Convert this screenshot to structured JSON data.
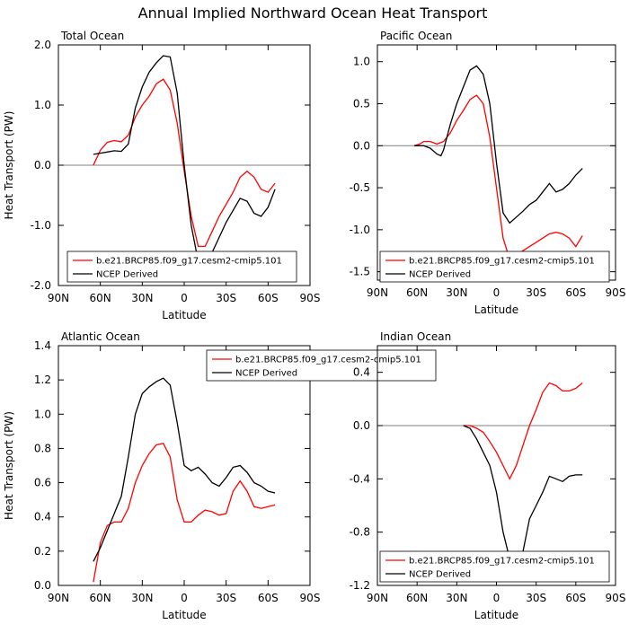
{
  "page": {
    "title": "Annual Implied Northward Ocean Heat Transport"
  },
  "colors": {
    "model": "#ff0000",
    "obs": "#000000",
    "zero_line": "#808080"
  },
  "chart_data": [
    {
      "type": "line",
      "title": "Total Ocean",
      "xlabel": "Latitude",
      "ylabel": "Heat Transport (PW)",
      "xlim": [
        90,
        -90
      ],
      "x_ticks": [
        90,
        60,
        30,
        0,
        -30,
        -60,
        -90
      ],
      "x_tick_labels": [
        "90N",
        "60N",
        "30N",
        "0",
        "30S",
        "60S",
        "90S"
      ],
      "ylim": [
        -2.0,
        2.0
      ],
      "y_ticks": [
        -2.0,
        -1.0,
        0.0,
        1.0,
        2.0
      ],
      "y_tick_labels": [
        "-2.0",
        "-1.0",
        "0.0",
        "1.0",
        "2.0"
      ],
      "zero_line": true,
      "legend_position": "bottom",
      "series": [
        {
          "name": "b.e21.BRCP85.f09_g17.cesm2-cmip5.101",
          "color": "#ff0000",
          "points": [
            [
              65,
              0.0
            ],
            [
              60,
              0.25
            ],
            [
              55,
              0.38
            ],
            [
              50,
              0.41
            ],
            [
              45,
              0.39
            ],
            [
              40,
              0.5
            ],
            [
              35,
              0.8
            ],
            [
              30,
              1.0
            ],
            [
              25,
              1.15
            ],
            [
              20,
              1.35
            ],
            [
              15,
              1.43
            ],
            [
              10,
              1.25
            ],
            [
              5,
              0.7
            ],
            [
              0,
              -0.1
            ],
            [
              -5,
              -0.85
            ],
            [
              -10,
              -1.35
            ],
            [
              -15,
              -1.35
            ],
            [
              -20,
              -1.1
            ],
            [
              -25,
              -0.85
            ],
            [
              -30,
              -0.65
            ],
            [
              -35,
              -0.45
            ],
            [
              -40,
              -0.2
            ],
            [
              -45,
              -0.1
            ],
            [
              -50,
              -0.2
            ],
            [
              -55,
              -0.4
            ],
            [
              -60,
              -0.45
            ],
            [
              -65,
              -0.3
            ]
          ]
        },
        {
          "name": "NCEP Derived",
          "color": "#000000",
          "points": [
            [
              65,
              0.18
            ],
            [
              60,
              0.2
            ],
            [
              55,
              0.22
            ],
            [
              50,
              0.24
            ],
            [
              45,
              0.23
            ],
            [
              40,
              0.35
            ],
            [
              35,
              0.95
            ],
            [
              30,
              1.3
            ],
            [
              25,
              1.55
            ],
            [
              20,
              1.7
            ],
            [
              15,
              1.82
            ],
            [
              10,
              1.8
            ],
            [
              5,
              1.2
            ],
            [
              0,
              0.0
            ],
            [
              -5,
              -1.0
            ],
            [
              -10,
              -1.6
            ],
            [
              -15,
              -1.65
            ],
            [
              -20,
              -1.45
            ],
            [
              -25,
              -1.2
            ],
            [
              -30,
              -0.95
            ],
            [
              -35,
              -0.75
            ],
            [
              -40,
              -0.55
            ],
            [
              -45,
              -0.6
            ],
            [
              -50,
              -0.8
            ],
            [
              -55,
              -0.85
            ],
            [
              -60,
              -0.7
            ],
            [
              -65,
              -0.4
            ]
          ]
        }
      ]
    },
    {
      "type": "line",
      "title": "Pacific Ocean",
      "xlabel": "Latitude",
      "ylabel": "",
      "xlim": [
        90,
        -90
      ],
      "x_ticks": [
        90,
        60,
        30,
        0,
        -30,
        -60,
        -90
      ],
      "x_tick_labels": [
        "90N",
        "60N",
        "30N",
        "0",
        "30S",
        "60S",
        "90S"
      ],
      "ylim": [
        -1.6,
        1.2
      ],
      "y_ticks": [
        -1.5,
        -1.0,
        -0.5,
        0.0,
        0.5,
        1.0
      ],
      "y_tick_labels": [
        "-1.5",
        "-1.0",
        "-0.5",
        "0.0",
        "0.5",
        "1.0"
      ],
      "zero_line": true,
      "legend_position": "bottom",
      "series": [
        {
          "name": "b.e21.BRCP85.f09_g17.cesm2-cmip5.101",
          "color": "#ff0000",
          "points": [
            [
              62,
              0.0
            ],
            [
              58,
              0.02
            ],
            [
              55,
              0.05
            ],
            [
              50,
              0.05
            ],
            [
              45,
              0.02
            ],
            [
              40,
              0.05
            ],
            [
              35,
              0.15
            ],
            [
              30,
              0.3
            ],
            [
              25,
              0.42
            ],
            [
              20,
              0.55
            ],
            [
              15,
              0.6
            ],
            [
              10,
              0.5
            ],
            [
              5,
              0.1
            ],
            [
              0,
              -0.5
            ],
            [
              -5,
              -1.1
            ],
            [
              -10,
              -1.35
            ],
            [
              -15,
              -1.3
            ],
            [
              -20,
              -1.25
            ],
            [
              -25,
              -1.2
            ],
            [
              -30,
              -1.15
            ],
            [
              -35,
              -1.1
            ],
            [
              -40,
              -1.05
            ],
            [
              -45,
              -1.03
            ],
            [
              -50,
              -1.05
            ],
            [
              -55,
              -1.1
            ],
            [
              -60,
              -1.2
            ],
            [
              -65,
              -1.07
            ]
          ]
        },
        {
          "name": "NCEP Derived",
          "color": "#000000",
          "points": [
            [
              62,
              0.0
            ],
            [
              58,
              0.0
            ],
            [
              55,
              0.0
            ],
            [
              50,
              -0.03
            ],
            [
              45,
              -0.1
            ],
            [
              42,
              -0.12
            ],
            [
              40,
              -0.05
            ],
            [
              35,
              0.25
            ],
            [
              30,
              0.5
            ],
            [
              25,
              0.7
            ],
            [
              20,
              0.9
            ],
            [
              15,
              0.95
            ],
            [
              10,
              0.85
            ],
            [
              5,
              0.5
            ],
            [
              0,
              -0.2
            ],
            [
              -5,
              -0.8
            ],
            [
              -10,
              -0.92
            ],
            [
              -15,
              -0.85
            ],
            [
              -20,
              -0.78
            ],
            [
              -25,
              -0.7
            ],
            [
              -30,
              -0.65
            ],
            [
              -35,
              -0.55
            ],
            [
              -40,
              -0.45
            ],
            [
              -45,
              -0.55
            ],
            [
              -50,
              -0.52
            ],
            [
              -55,
              -0.45
            ],
            [
              -60,
              -0.35
            ],
            [
              -65,
              -0.27
            ]
          ]
        }
      ]
    },
    {
      "type": "line",
      "title": "Atlantic Ocean",
      "xlabel": "Latitude",
      "ylabel": "Heat Transport (PW)",
      "xlim": [
        90,
        -90
      ],
      "x_ticks": [
        90,
        60,
        30,
        0,
        -30,
        -60,
        -90
      ],
      "x_tick_labels": [
        "90N",
        "60N",
        "30N",
        "0",
        "30S",
        "60S",
        "90S"
      ],
      "ylim": [
        0.0,
        1.4
      ],
      "y_ticks": [
        0.0,
        0.2,
        0.4,
        0.6,
        0.8,
        1.0,
        1.2,
        1.4
      ],
      "y_tick_labels": [
        "0.0",
        "0.2",
        "0.4",
        "0.6",
        "0.8",
        "1.0",
        "1.2",
        "1.4"
      ],
      "zero_line": false,
      "legend_position": "top",
      "series": [
        {
          "name": "b.e21.BRCP85.f09_g17.cesm2-cmip5.101",
          "color": "#ff0000",
          "points": [
            [
              65,
              0.02
            ],
            [
              60,
              0.25
            ],
            [
              55,
              0.35
            ],
            [
              50,
              0.37
            ],
            [
              45,
              0.37
            ],
            [
              40,
              0.45
            ],
            [
              35,
              0.6
            ],
            [
              30,
              0.7
            ],
            [
              25,
              0.77
            ],
            [
              20,
              0.82
            ],
            [
              15,
              0.83
            ],
            [
              10,
              0.75
            ],
            [
              5,
              0.5
            ],
            [
              0,
              0.37
            ],
            [
              -5,
              0.37
            ],
            [
              -10,
              0.41
            ],
            [
              -15,
              0.44
            ],
            [
              -20,
              0.43
            ],
            [
              -25,
              0.41
            ],
            [
              -30,
              0.42
            ],
            [
              -35,
              0.55
            ],
            [
              -40,
              0.61
            ],
            [
              -45,
              0.55
            ],
            [
              -50,
              0.46
            ],
            [
              -55,
              0.45
            ],
            [
              -60,
              0.46
            ],
            [
              -65,
              0.47
            ]
          ]
        },
        {
          "name": "NCEP Derived",
          "color": "#000000",
          "points": [
            [
              65,
              0.14
            ],
            [
              60,
              0.22
            ],
            [
              55,
              0.32
            ],
            [
              50,
              0.42
            ],
            [
              45,
              0.52
            ],
            [
              40,
              0.75
            ],
            [
              35,
              1.0
            ],
            [
              30,
              1.12
            ],
            [
              25,
              1.16
            ],
            [
              20,
              1.19
            ],
            [
              15,
              1.21
            ],
            [
              10,
              1.17
            ],
            [
              5,
              0.95
            ],
            [
              0,
              0.7
            ],
            [
              -5,
              0.67
            ],
            [
              -10,
              0.69
            ],
            [
              -15,
              0.65
            ],
            [
              -20,
              0.6
            ],
            [
              -25,
              0.58
            ],
            [
              -30,
              0.63
            ],
            [
              -35,
              0.69
            ],
            [
              -40,
              0.7
            ],
            [
              -45,
              0.66
            ],
            [
              -50,
              0.6
            ],
            [
              -55,
              0.58
            ],
            [
              -60,
              0.55
            ],
            [
              -65,
              0.54
            ]
          ]
        }
      ]
    },
    {
      "type": "line",
      "title": "Indian Ocean",
      "xlabel": "Latitude",
      "ylabel": "",
      "xlim": [
        90,
        -90
      ],
      "x_ticks": [
        90,
        60,
        30,
        0,
        -30,
        -60,
        -90
      ],
      "x_tick_labels": [
        "90N",
        "60N",
        "30N",
        "0",
        "30S",
        "60S",
        "90S"
      ],
      "ylim": [
        -1.2,
        0.6
      ],
      "y_ticks": [
        -1.2,
        -0.8,
        -0.4,
        0.0,
        0.4
      ],
      "y_tick_labels": [
        "-1.2",
        "-0.8",
        "-0.4",
        "0.0",
        "0.4"
      ],
      "zero_line": true,
      "legend_position": "bottom",
      "series": [
        {
          "name": "b.e21.BRCP85.f09_g17.cesm2-cmip5.101",
          "color": "#ff0000",
          "points": [
            [
              25,
              0.0
            ],
            [
              20,
              0.0
            ],
            [
              15,
              -0.02
            ],
            [
              10,
              -0.05
            ],
            [
              5,
              -0.12
            ],
            [
              0,
              -0.2
            ],
            [
              -5,
              -0.3
            ],
            [
              -10,
              -0.4
            ],
            [
              -15,
              -0.3
            ],
            [
              -20,
              -0.15
            ],
            [
              -25,
              0.0
            ],
            [
              -30,
              0.12
            ],
            [
              -35,
              0.25
            ],
            [
              -40,
              0.32
            ],
            [
              -45,
              0.3
            ],
            [
              -50,
              0.26
            ],
            [
              -55,
              0.26
            ],
            [
              -60,
              0.28
            ],
            [
              -65,
              0.32
            ]
          ]
        },
        {
          "name": "NCEP Derived",
          "color": "#000000",
          "points": [
            [
              25,
              0.0
            ],
            [
              20,
              -0.02
            ],
            [
              15,
              -0.1
            ],
            [
              10,
              -0.2
            ],
            [
              5,
              -0.3
            ],
            [
              0,
              -0.5
            ],
            [
              -5,
              -0.8
            ],
            [
              -10,
              -1.0
            ],
            [
              -15,
              -1.05
            ],
            [
              -20,
              -0.95
            ],
            [
              -25,
              -0.7
            ],
            [
              -30,
              -0.6
            ],
            [
              -35,
              -0.5
            ],
            [
              -40,
              -0.38
            ],
            [
              -45,
              -0.4
            ],
            [
              -50,
              -0.42
            ],
            [
              -55,
              -0.38
            ],
            [
              -60,
              -0.37
            ],
            [
              -65,
              -0.37
            ]
          ]
        }
      ]
    }
  ]
}
